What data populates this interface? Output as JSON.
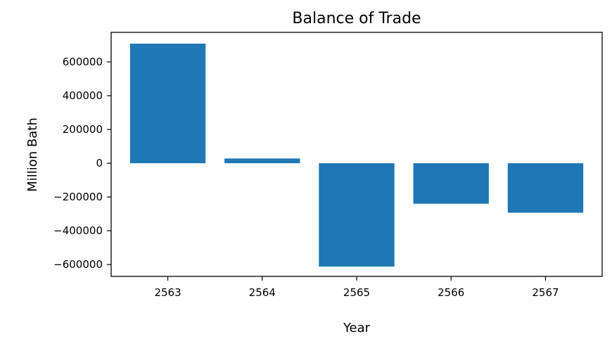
{
  "chart_data": {
    "type": "bar",
    "title": "Balance of Trade",
    "xlabel": "Year",
    "ylabel": "Million Bath",
    "categories": [
      "2563",
      "2564",
      "2565",
      "2566",
      "2567"
    ],
    "values": [
      708000,
      28000,
      -612000,
      -240000,
      -293000
    ],
    "ylim": [
      -670000,
      775000
    ],
    "yticks": [
      -600000,
      -400000,
      -200000,
      0,
      200000,
      400000,
      600000
    ],
    "bar_color": "#1f77b4",
    "grid": false
  }
}
